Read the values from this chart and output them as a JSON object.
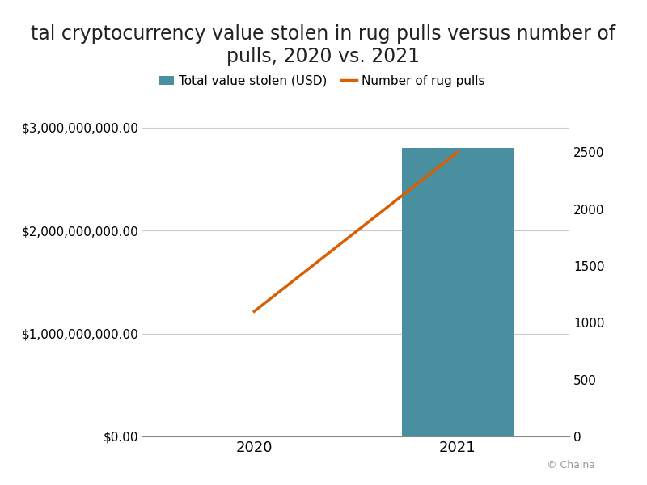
{
  "years": [
    2020,
    2021
  ],
  "bar_values": [
    11000000,
    2800000000
  ],
  "line_values": [
    1100,
    2500
  ],
  "bar_color": "#4a8fa0",
  "line_color": "#d95f02",
  "title": "tal cryptocurrency value stolen in rug pulls versus number of\npulls, 2020 vs. 2021",
  "legend_bar": "Total value stolen (USD)",
  "legend_line": "Number of rug pulls",
  "left_ylim": [
    0,
    3200000000
  ],
  "right_ylim": [
    0,
    2900
  ],
  "left_yticks": [
    0,
    1000000000,
    2000000000,
    3000000000
  ],
  "right_yticks": [
    0,
    500,
    1000,
    1500,
    2000,
    2500
  ],
  "watermark": "© Chaina",
  "background_color": "#ffffff",
  "title_fontsize": 17,
  "tick_fontsize": 11
}
